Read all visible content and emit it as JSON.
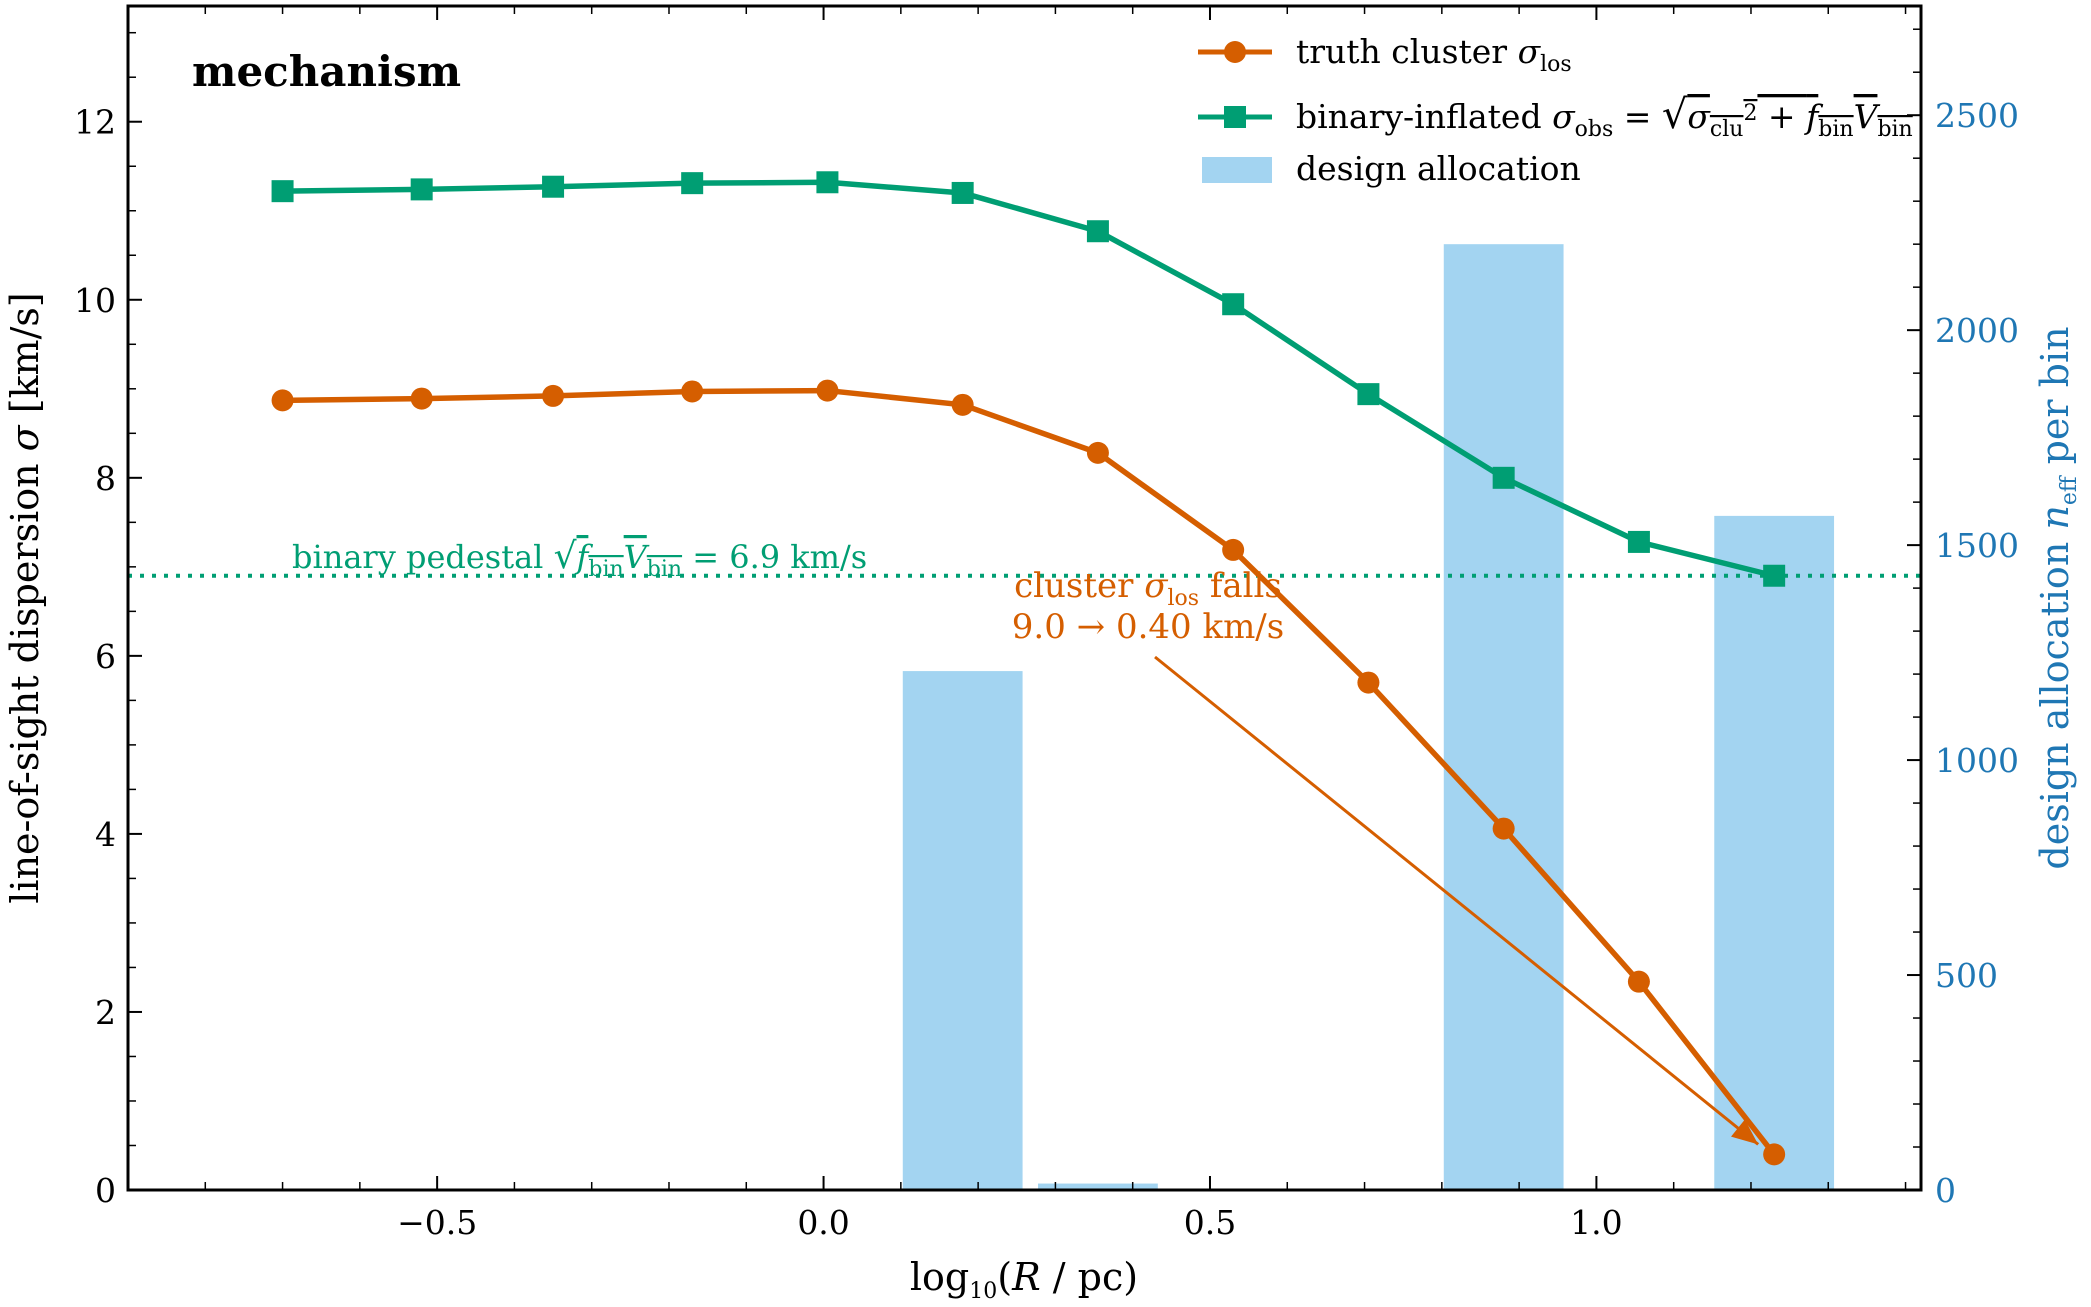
{
  "chart_data": {
    "type": "line",
    "panel_label": "mechanism",
    "xlabel": "log10(R / pc)",
    "ylabel": "line-of-sight dispersion σ [km/s]",
    "ylabel2": "design allocation n_eff per bin",
    "xlim": [
      -0.9,
      1.42
    ],
    "ylim": [
      0,
      13.3
    ],
    "ylim2": [
      0,
      2754
    ],
    "x_ticks": [
      -0.5,
      0.0,
      0.5,
      1.0
    ],
    "x_tick_labels": [
      "−0.5",
      "0.0",
      "0.5",
      "1.0"
    ],
    "y_ticks": [
      0,
      2,
      4,
      6,
      8,
      10,
      12
    ],
    "y_tick_labels": [
      "0",
      "2",
      "4",
      "6",
      "8",
      "10",
      "12"
    ],
    "y2_ticks": [
      0,
      500,
      1000,
      1500,
      2000,
      2500
    ],
    "y2_tick_labels": [
      "0",
      "500",
      "1000",
      "1500",
      "2000",
      "2500"
    ],
    "x": [
      -0.7,
      -0.52,
      -0.35,
      -0.17,
      0.005,
      0.18,
      0.355,
      0.53,
      0.705,
      0.88,
      1.055,
      1.23
    ],
    "series": [
      {
        "name": "truth cluster σ_los",
        "color": "#d55e00",
        "marker": "circle",
        "values": [
          8.87,
          8.89,
          8.92,
          8.97,
          8.98,
          8.82,
          8.28,
          7.19,
          5.7,
          4.06,
          2.34,
          0.4
        ]
      },
      {
        "name": "binary-inflated σ_obs = √(σ_clu² + f_bin V_bin)",
        "color": "#009e73",
        "marker": "square",
        "values": [
          11.22,
          11.24,
          11.27,
          11.31,
          11.32,
          11.2,
          10.77,
          9.95,
          8.94,
          8.0,
          7.28,
          6.9
        ]
      }
    ],
    "bars": {
      "name": "design allocation",
      "color": "#a3d4f1",
      "x": [
        0.18,
        0.355,
        0.88,
        1.23
      ],
      "width": 0.155,
      "values": [
        1207,
        15,
        2200,
        1568
      ]
    },
    "hline": {
      "y": 6.9,
      "color": "#009e73",
      "label": "binary pedestal √(f_bin V_bin) = 6.9 km/s"
    },
    "annotation": {
      "line1": "cluster σ_los falls",
      "line2": "9.0 → 0.40 km/s",
      "color": "#d55e00",
      "arrow_to": [
        1.23,
        0.4
      ]
    },
    "legend_position": "top-right",
    "grid": false
  }
}
